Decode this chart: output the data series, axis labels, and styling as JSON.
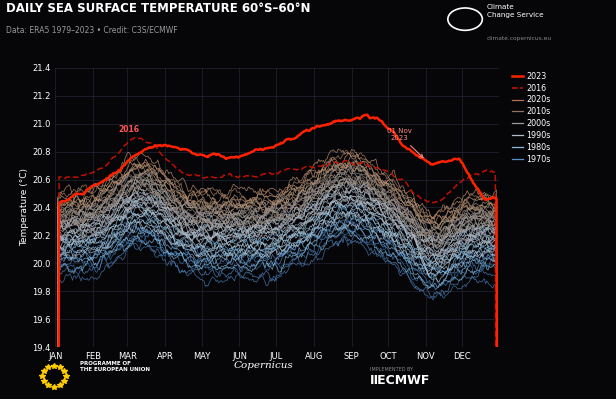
{
  "title": "DAILY SEA SURFACE TEMPERATURE 60°S–60°N",
  "subtitle": "Data: ERA5 1979–2023 • Credit: C3S/ECMWF",
  "ylabel": "Temperature (°C)",
  "ylim": [
    19.4,
    21.4
  ],
  "yticks": [
    19.4,
    19.6,
    19.8,
    20.0,
    20.2,
    20.4,
    20.6,
    20.8,
    21.0,
    21.2,
    21.4
  ],
  "bg_color": "#060608",
  "grid_color": "#252535",
  "month_labels": [
    "JAN",
    "FEB",
    "MAR",
    "APR",
    "MAY",
    "JUN",
    "JUL",
    "AUG",
    "SEP",
    "OCT",
    "NOV",
    "DEC"
  ],
  "month_starts": [
    0,
    31,
    59,
    90,
    120,
    151,
    181,
    212,
    243,
    273,
    304,
    334
  ],
  "legend_items": [
    "2023",
    "2016",
    "2020s",
    "2010s",
    "2000s",
    "1990s",
    "1980s",
    "1970s"
  ],
  "color_2023": "#ff2200",
  "color_2016": "#cc1100",
  "color_2020s": "#b87050",
  "color_2010s": "#907060",
  "color_2000s": "#a09898",
  "color_1990s": "#b0bccc",
  "color_1980s": "#90b8d8",
  "color_1970s": "#5a90c8",
  "annotation_color": "#ff8888",
  "label_2016_color": "#ff6666"
}
